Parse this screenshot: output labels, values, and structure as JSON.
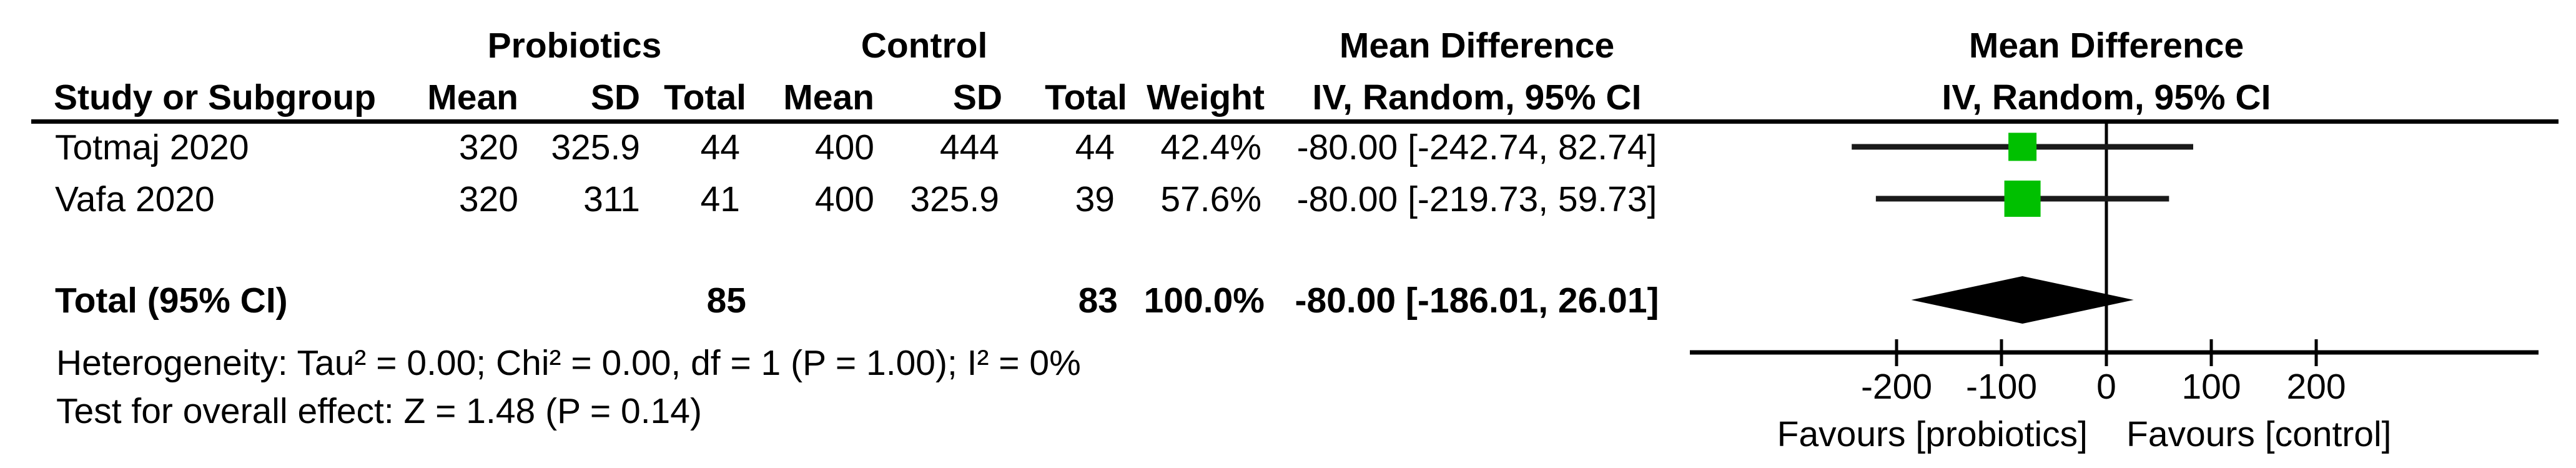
{
  "table": {
    "header": {
      "group1_label": "Probiotics",
      "group2_label": "Control",
      "effect_label_table": "Mean Difference",
      "effect_label_plot": "Mean Difference",
      "study_col": "Study or Subgroup",
      "mean_col_1": "Mean",
      "sd_col_1": "SD",
      "total_col_1": "Total",
      "mean_col_2": "Mean",
      "sd_col_2": "SD",
      "total_col_2": "Total",
      "weight_col": "Weight",
      "method_col_table": "IV, Random, 95% CI",
      "method_col_plot": "IV, Random, 95% CI"
    },
    "rows": [
      {
        "study": "Totmaj 2020",
        "p_mean": "320",
        "p_sd": "325.9",
        "p_total": "44",
        "c_mean": "400",
        "c_sd": "444",
        "c_total": "44",
        "weight": "42.4%",
        "ci": "-80.00 [-242.74, 82.74]"
      },
      {
        "study": "Vafa 2020",
        "p_mean": "320",
        "p_sd": "311",
        "p_total": "41",
        "c_mean": "400",
        "c_sd": "325.9",
        "c_total": "39",
        "weight": "57.6%",
        "ci": "-80.00 [-219.73, 59.73]"
      }
    ],
    "total_row": {
      "label": "Total (95% CI)",
      "p_total": "85",
      "c_total": "83",
      "weight": "100.0%",
      "ci": "-80.00 [-186.01, 26.01]"
    },
    "footer": {
      "heterogeneity": "Heterogeneity: Tau² = 0.00; Chi² = 0.00, df = 1 (P = 1.00); I² = 0%",
      "overall_effect": "Test for overall effect: Z = 1.48 (P = 0.14)"
    }
  },
  "chart_data": {
    "type": "scatter",
    "subtype": "forest-plot",
    "title": "Mean Difference",
    "model": "IV, Random, 95% CI",
    "x_axis": {
      "ticks": [
        -200,
        -100,
        0,
        100,
        200
      ],
      "tick_labels": [
        "-200",
        "-100",
        "0",
        "100",
        "200"
      ],
      "range": [
        -400,
        410
      ]
    },
    "studies": [
      {
        "name": "Totmaj 2020",
        "md": -80.0,
        "ci_lower": -242.74,
        "ci_upper": 82.74,
        "weight_pct": 42.4
      },
      {
        "name": "Vafa 2020",
        "md": -80.0,
        "ci_lower": -219.73,
        "ci_upper": 59.73,
        "weight_pct": 57.6
      }
    ],
    "total": {
      "md": -80.0,
      "ci_lower": -186.01,
      "ci_upper": 26.01
    },
    "favours_left": "Favours [probiotics]",
    "favours_right": "Favours [control]",
    "marker_color": "#00c000",
    "line_color": "#000000",
    "legend_position": "none",
    "grid": false
  }
}
